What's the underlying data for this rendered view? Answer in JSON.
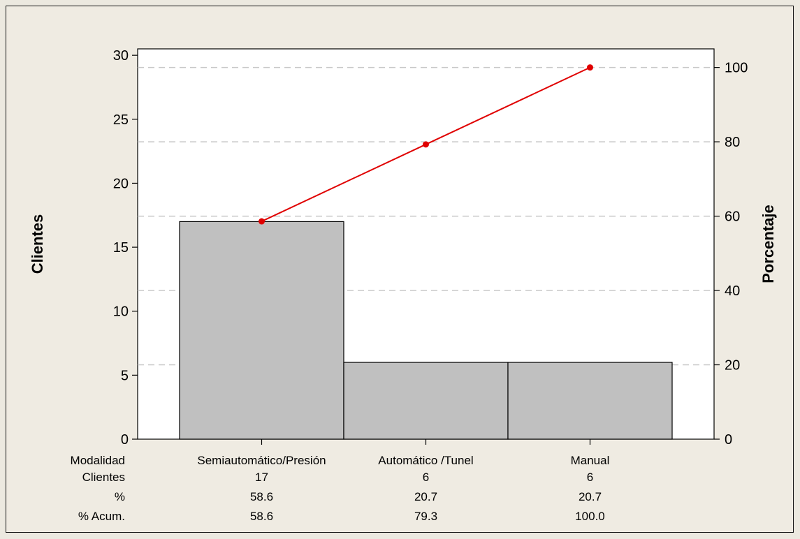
{
  "chart_data": {
    "type": "bar",
    "subtype": "pareto",
    "categories": [
      "Semiautomático/Presión",
      "Automático /Tunel",
      "Manual"
    ],
    "values": [
      17,
      6,
      6
    ],
    "percent": [
      58.6,
      20.7,
      20.7
    ],
    "cumulative_percent": [
      58.6,
      79.3,
      100.0
    ],
    "ylabel": "Clientes",
    "y2label": "Porcentaje",
    "ylim": [
      0,
      30.5
    ],
    "y2lim": [
      0,
      105
    ],
    "yticks": [
      0,
      5,
      10,
      15,
      20,
      25,
      30
    ],
    "y2ticks": [
      0,
      20,
      40,
      60,
      80,
      100
    ],
    "grid": "horizontal dashed at right-axis ticks",
    "colors": {
      "bar": "#c0c0c0",
      "line": "#e00000",
      "grid": "#c8c8c8",
      "plot_bg": "#ffffff"
    },
    "table": {
      "row_labels": [
        "Modalidad",
        "Clientes",
        "%",
        "% Acum."
      ],
      "rows": [
        [
          "Semiautomático/Presión",
          "Automático /Tunel",
          "Manual"
        ],
        [
          "17",
          "6",
          "6"
        ],
        [
          "58.6",
          "20.7",
          "20.7"
        ],
        [
          "58.6",
          "79.3",
          "100.0"
        ]
      ]
    }
  }
}
